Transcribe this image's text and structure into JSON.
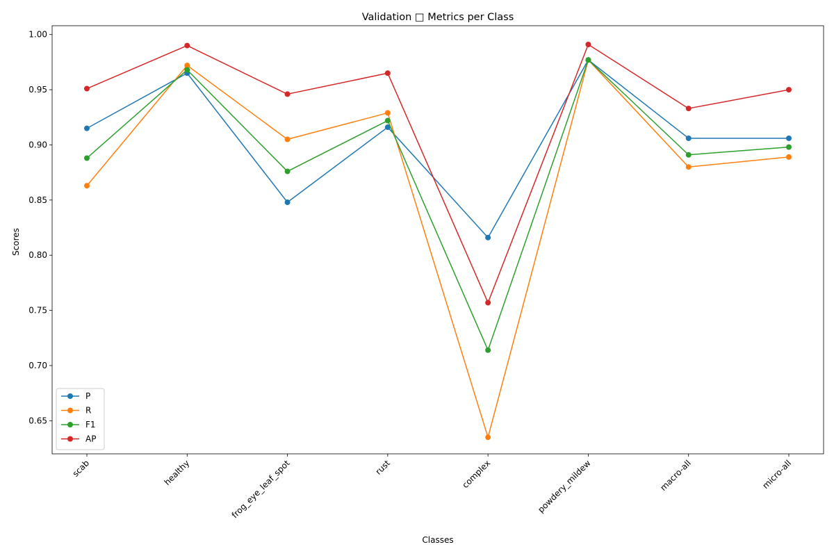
{
  "chart_data": {
    "type": "line",
    "title": "Validation □ Metrics per Class",
    "xlabel": "Classes",
    "ylabel": "Scores",
    "categories": [
      "scab",
      "healthy",
      "frog_eye_leaf_spot",
      "rust",
      "complex",
      "powdery_mildew",
      "macro-all",
      "micro-all"
    ],
    "ylim": [
      0.62,
      1.008
    ],
    "yticks": [
      0.65,
      0.7,
      0.75,
      0.8,
      0.85,
      0.9,
      0.95,
      1.0
    ],
    "ytick_labels": [
      "0.65",
      "0.70",
      "0.75",
      "0.80",
      "0.85",
      "0.90",
      "0.95",
      "1.00"
    ],
    "grid": false,
    "legend_position": "lower-left",
    "series": [
      {
        "name": "P",
        "color": "#1f77b4",
        "values": [
          0.915,
          0.965,
          0.848,
          0.916,
          0.816,
          0.977,
          0.906,
          0.906
        ]
      },
      {
        "name": "R",
        "color": "#ff7f0e",
        "values": [
          0.863,
          0.972,
          0.905,
          0.929,
          0.635,
          0.977,
          0.88,
          0.889
        ]
      },
      {
        "name": "F1",
        "color": "#2ca02c",
        "values": [
          0.888,
          0.968,
          0.876,
          0.922,
          0.714,
          0.977,
          0.891,
          0.898
        ]
      },
      {
        "name": "AP",
        "color": "#d62728",
        "values": [
          0.951,
          0.99,
          0.946,
          0.965,
          0.757,
          0.991,
          0.933,
          0.95
        ]
      }
    ]
  }
}
